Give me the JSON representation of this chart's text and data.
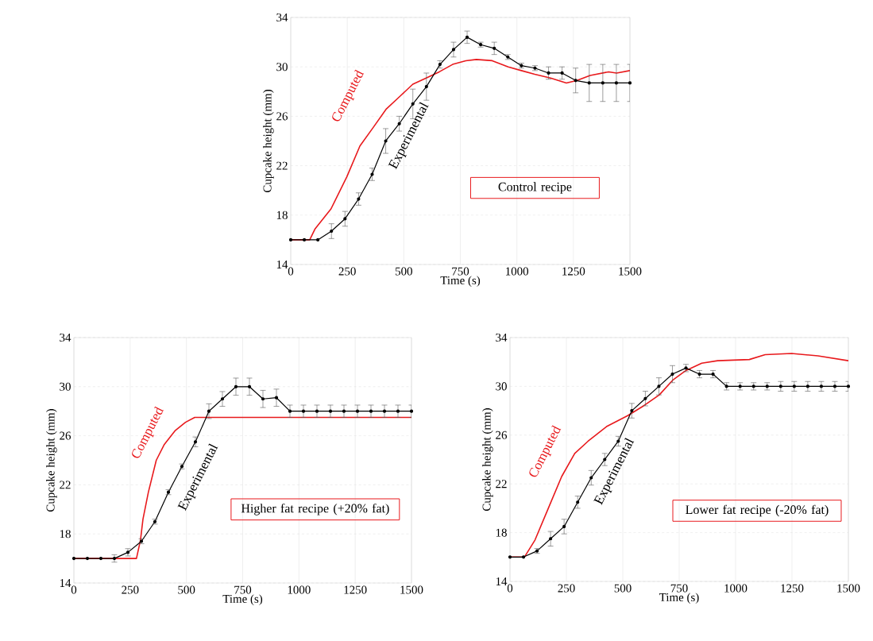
{
  "chart_data": [
    {
      "type": "line",
      "xlabel": "Time (s)",
      "ylabel": "Cupcake height (mm)",
      "xlim": [
        0,
        1500
      ],
      "ylim": [
        14,
        34
      ],
      "xticks": [
        0,
        250,
        500,
        750,
        1000,
        1250,
        1500
      ],
      "yticks": [
        14,
        18,
        22,
        26,
        30,
        34
      ],
      "grid": true,
      "annotations": [
        "Control recipe"
      ],
      "series": [
        {
          "name": "Computed",
          "color": "#e8191c",
          "marker": "none",
          "x": [
            0,
            84,
            108,
            178,
            248,
            306,
            365,
            423,
            482,
            540,
            599,
            657,
            716,
            774,
            821,
            891,
            962,
            1020,
            1079,
            1149,
            1219,
            1266,
            1324,
            1406,
            1441,
            1500
          ],
          "values": [
            16.0,
            16.0,
            16.9,
            18.5,
            21.1,
            23.6,
            25.1,
            26.6,
            27.6,
            28.6,
            29.1,
            29.6,
            30.2,
            30.5,
            30.6,
            30.5,
            30.0,
            29.7,
            29.4,
            29.1,
            28.7,
            28.9,
            29.3,
            29.6,
            29.5,
            29.7
          ]
        },
        {
          "name": "Experimental",
          "color": "#000000",
          "marker": "circle",
          "x": [
            0,
            60,
            120,
            180,
            240,
            300,
            360,
            420,
            480,
            540,
            600,
            660,
            720,
            780,
            840,
            900,
            960,
            1020,
            1080,
            1140,
            1200,
            1260,
            1320,
            1380,
            1440,
            1500
          ],
          "values": [
            16.0,
            16.0,
            16.0,
            16.7,
            17.7,
            19.3,
            21.3,
            24.0,
            25.4,
            27.0,
            28.4,
            30.2,
            31.4,
            32.4,
            31.8,
            31.5,
            30.8,
            30.1,
            29.9,
            29.5,
            29.5,
            28.9,
            28.7,
            28.7,
            28.7,
            28.7
          ],
          "errors": [
            null,
            null,
            null,
            0.6,
            0.6,
            0.5,
            0.5,
            1.0,
            0.6,
            1.2,
            1.1,
            0.3,
            0.6,
            0.5,
            0.2,
            0.5,
            0.2,
            0.2,
            0.2,
            0.5,
            0.5,
            1.0,
            1.5,
            1.5,
            1.5,
            1.5
          ]
        }
      ]
    },
    {
      "type": "line",
      "xlabel": "Time (s)",
      "ylabel": "Cupcake height (mm)",
      "xlim": [
        0,
        1500
      ],
      "ylim": [
        14,
        34
      ],
      "xticks": [
        0,
        250,
        500,
        750,
        1000,
        1250,
        1500
      ],
      "yticks": [
        14,
        18,
        22,
        26,
        30,
        34
      ],
      "grid": true,
      "annotations": [
        "Higher fat recipe (+20% fat)"
      ],
      "series": [
        {
          "name": "Computed",
          "color": "#e8191c",
          "marker": "none",
          "x": [
            0,
            278,
            296,
            307,
            331,
            366,
            402,
            449,
            496,
            537,
            1500
          ],
          "values": [
            16.0,
            16.0,
            17.5,
            19.2,
            21.4,
            24.0,
            25.3,
            26.4,
            27.1,
            27.5,
            27.5
          ]
        },
        {
          "name": "Experimental",
          "color": "#000000",
          "marker": "circle",
          "x": [
            0,
            60,
            120,
            180,
            240,
            300,
            360,
            420,
            480,
            540,
            600,
            660,
            720,
            780,
            840,
            900,
            960,
            1020,
            1080,
            1140,
            1200,
            1260,
            1320,
            1380,
            1440,
            1500
          ],
          "values": [
            16.0,
            16.0,
            16.0,
            16.0,
            16.5,
            17.4,
            19.0,
            21.4,
            23.5,
            25.5,
            28.0,
            29.0,
            30.0,
            30.0,
            29.0,
            29.1,
            28.0,
            28.0,
            28.0,
            28.0,
            28.0,
            28.0,
            28.0,
            28.0,
            28.0,
            28.0
          ],
          "errors": [
            null,
            null,
            null,
            0.3,
            0.3,
            0.2,
            0.2,
            0.2,
            0.2,
            0.4,
            0.6,
            0.6,
            0.7,
            0.7,
            0.7,
            0.7,
            0.5,
            0.5,
            0.5,
            0.5,
            0.5,
            0.5,
            0.5,
            0.5,
            0.5,
            0.5
          ]
        }
      ]
    },
    {
      "type": "line",
      "xlabel": "Time (s)",
      "ylabel": "Cupcake height (mm)",
      "xlim": [
        0,
        1500
      ],
      "ylim": [
        14,
        34
      ],
      "xticks": [
        0,
        250,
        500,
        750,
        1000,
        1250,
        1500
      ],
      "yticks": [
        14,
        18,
        22,
        26,
        30,
        34
      ],
      "grid": true,
      "annotations": [
        "Lower fat recipe (-20% fat)"
      ],
      "series": [
        {
          "name": "Computed",
          "color": "#e8191c",
          "marker": "none",
          "x": [
            0,
            64,
            111,
            170,
            229,
            287,
            346,
            428,
            522,
            592,
            662,
            721,
            780,
            850,
            920,
            1061,
            1131,
            1248,
            1365,
            1500
          ],
          "values": [
            16.0,
            16.0,
            17.4,
            20.0,
            22.6,
            24.5,
            25.5,
            26.7,
            27.6,
            28.4,
            29.3,
            30.5,
            31.3,
            31.9,
            32.1,
            32.2,
            32.6,
            32.7,
            32.5,
            32.1
          ]
        },
        {
          "name": "Experimental",
          "color": "#000000",
          "marker": "circle",
          "x": [
            0,
            60,
            120,
            180,
            240,
            300,
            360,
            420,
            480,
            540,
            600,
            660,
            720,
            780,
            840,
            900,
            960,
            1020,
            1080,
            1140,
            1200,
            1260,
            1320,
            1380,
            1440,
            1500
          ],
          "values": [
            16.0,
            16.0,
            16.5,
            17.5,
            18.5,
            20.5,
            22.5,
            24.0,
            25.5,
            28.0,
            29.0,
            30.0,
            31.0,
            31.5,
            31.0,
            31.0,
            30.0,
            30.0,
            30.0,
            30.0,
            30.0,
            30.0,
            30.0,
            30.0,
            30.0,
            30.0
          ],
          "errors": [
            null,
            null,
            0.2,
            0.6,
            0.6,
            0.5,
            0.6,
            0.5,
            0.4,
            0.6,
            0.6,
            0.7,
            0.7,
            0.3,
            0.3,
            0.3,
            0.3,
            0.3,
            0.3,
            0.3,
            0.4,
            0.4,
            0.4,
            0.4,
            0.4,
            0.4
          ]
        }
      ]
    }
  ]
}
